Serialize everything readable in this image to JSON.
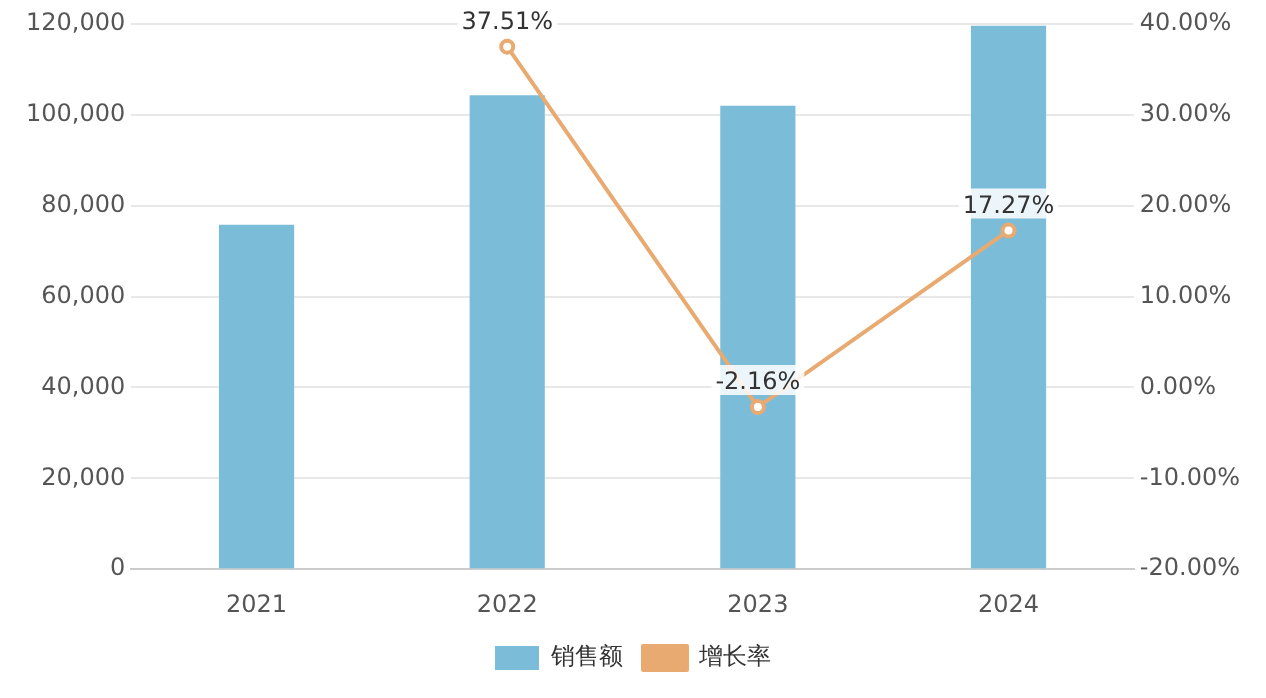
{
  "chart_data": {
    "type": "bar",
    "categories": [
      "2021",
      "2022",
      "2023",
      "2024"
    ],
    "series": [
      {
        "name": "销售额",
        "color": "#7bbdd9",
        "values": [
          75800,
          104300,
          102000,
          119600
        ]
      },
      {
        "name": "增长率",
        "type": "line",
        "axis": "y2",
        "color": "#e8aa70",
        "marker": "circle",
        "values": [
          null,
          37.51,
          -2.16,
          17.27
        ],
        "value_labels": [
          null,
          "37.51%",
          "-2.16%",
          "17.27%"
        ]
      }
    ],
    "ylim": [
      0,
      120000
    ],
    "yticks": [
      0,
      {
        "value": 20000,
        "label": "20,000"
      },
      {
        "value": 40000,
        "label": "40,000"
      },
      {
        "value": 60000,
        "label": "60,000"
      },
      {
        "value": 80000,
        "label": "80,000"
      },
      {
        "value": 100000,
        "label": "100,000"
      },
      {
        "value": 120000,
        "label": "120,000"
      }
    ],
    "y2lim": [
      -20,
      40
    ],
    "y2ticks": [
      {
        "value": -20,
        "label": "-20.00%"
      },
      {
        "value": -10,
        "label": "-10.00%"
      },
      {
        "value": 0,
        "label": "0.00%"
      },
      {
        "value": 10,
        "label": "10.00%"
      },
      {
        "value": 20,
        "label": "20.00%"
      },
      {
        "value": 30,
        "label": "30.00%"
      },
      {
        "value": 40,
        "label": "40.00%"
      }
    ],
    "grid": "y",
    "legend": "bottom"
  }
}
